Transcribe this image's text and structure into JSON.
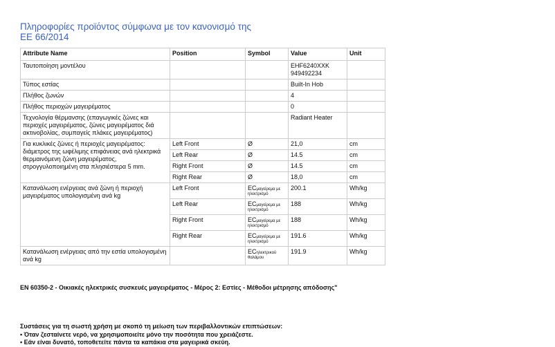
{
  "title": [
    "Πληροφορίες προϊόντος σύμφωνα με τον κανονισμό της",
    "ΕΕ 66/2014"
  ],
  "headers": [
    "Attribute Name",
    "Position",
    "Symbol",
    "Value",
    "Unit"
  ],
  "model": {
    "name": "Ταυτοποίηση μοντέλου",
    "value1": "EHF6240XXK",
    "value2": "949492234"
  },
  "hob_type": {
    "name": "Τύπος εστίας",
    "value": "Built-In Hob"
  },
  "zones": {
    "name": "Πλήθος ζωνών",
    "value": "4"
  },
  "areas": {
    "name": "Πλήθος περιοχών μαγειρέματος",
    "value": "0"
  },
  "tech": {
    "name": "Τεχνολογία θέρμανσης (επαγωγικές ζώνες και περιοχές μαγειρέματος, ζώνες μαγειρέματος διά ακτινοβολίας, συμπαγείς πλάκες μαγειρέματος)",
    "value": "Radiant Heater"
  },
  "diameter": {
    "name": "Για κυκλικές ζώνες ή περιοχές μαγειρέματος: διάμετρος της ωφέλιμης επιφάνειας ανά ηλεκτρικά θερμαινόμενη ζώνη μαγειρέματος, στρογγυλοποιημένη στα πλησιέστερα 5 mm.",
    "rows": [
      {
        "pos": "Left Front",
        "sym": "Ø",
        "val": "21,0",
        "unit": "cm"
      },
      {
        "pos": "Left Rear",
        "sym": "Ø",
        "val": "14.5",
        "unit": "cm"
      },
      {
        "pos": "Right Front",
        "sym": "Ø",
        "val": "14.5",
        "unit": "cm"
      },
      {
        "pos": "Right Rear",
        "sym": "Ø",
        "val": "18,0",
        "unit": "cm"
      }
    ]
  },
  "energy": {
    "name": "Κατανάλωση ενέργειας ανά ζώνη ή περιοχή μαγειρέματος υπολογισμένη ανά kg",
    "sym": "EC",
    "sub1": "μαγείρεμα με",
    "sub2": "ηλεκτρισμό",
    "rows": [
      {
        "pos": "Left Front",
        "val": "200.1",
        "unit": "Wh/kg"
      },
      {
        "pos": "Left Rear",
        "val": "188",
        "unit": "Wh/kg"
      },
      {
        "pos": "Right Front",
        "val": "188",
        "unit": "Wh/kg"
      },
      {
        "pos": "Right Rear",
        "val": "191.6",
        "unit": "Wh/kg"
      }
    ]
  },
  "hob_energy": {
    "name": "Κατανάλωση ενέργειας από την εστία υπολογισμένη ανά kg",
    "sym": "EC",
    "sub1": "ηλεκτρικού",
    "sub2": "θαλάμου",
    "val": "191.9",
    "unit": "Wh/kg"
  },
  "standard": "EN 60350-2 - Οικιακές ηλεκτρικές συσκευές μαγειρέματος - Μέρος 2: Εστίες - Μέθοδοι μέτρησης απόδοσης\"",
  "recommendations": [
    "Συστάσεις για τη σωστή χρήση με σκοπό τη μείωση των περιβαλλοντικών επιπτώσεων:",
    "• Όταν ζεσταίνετε νερό, να χρησιμοποιείτε μόνο την ποσότητα που χρειάζεστε.",
    "• Εάν είναι δυνατό, τοποθετείτε πάντα τα καπάκια στα μαγειρικά σκεύη."
  ]
}
